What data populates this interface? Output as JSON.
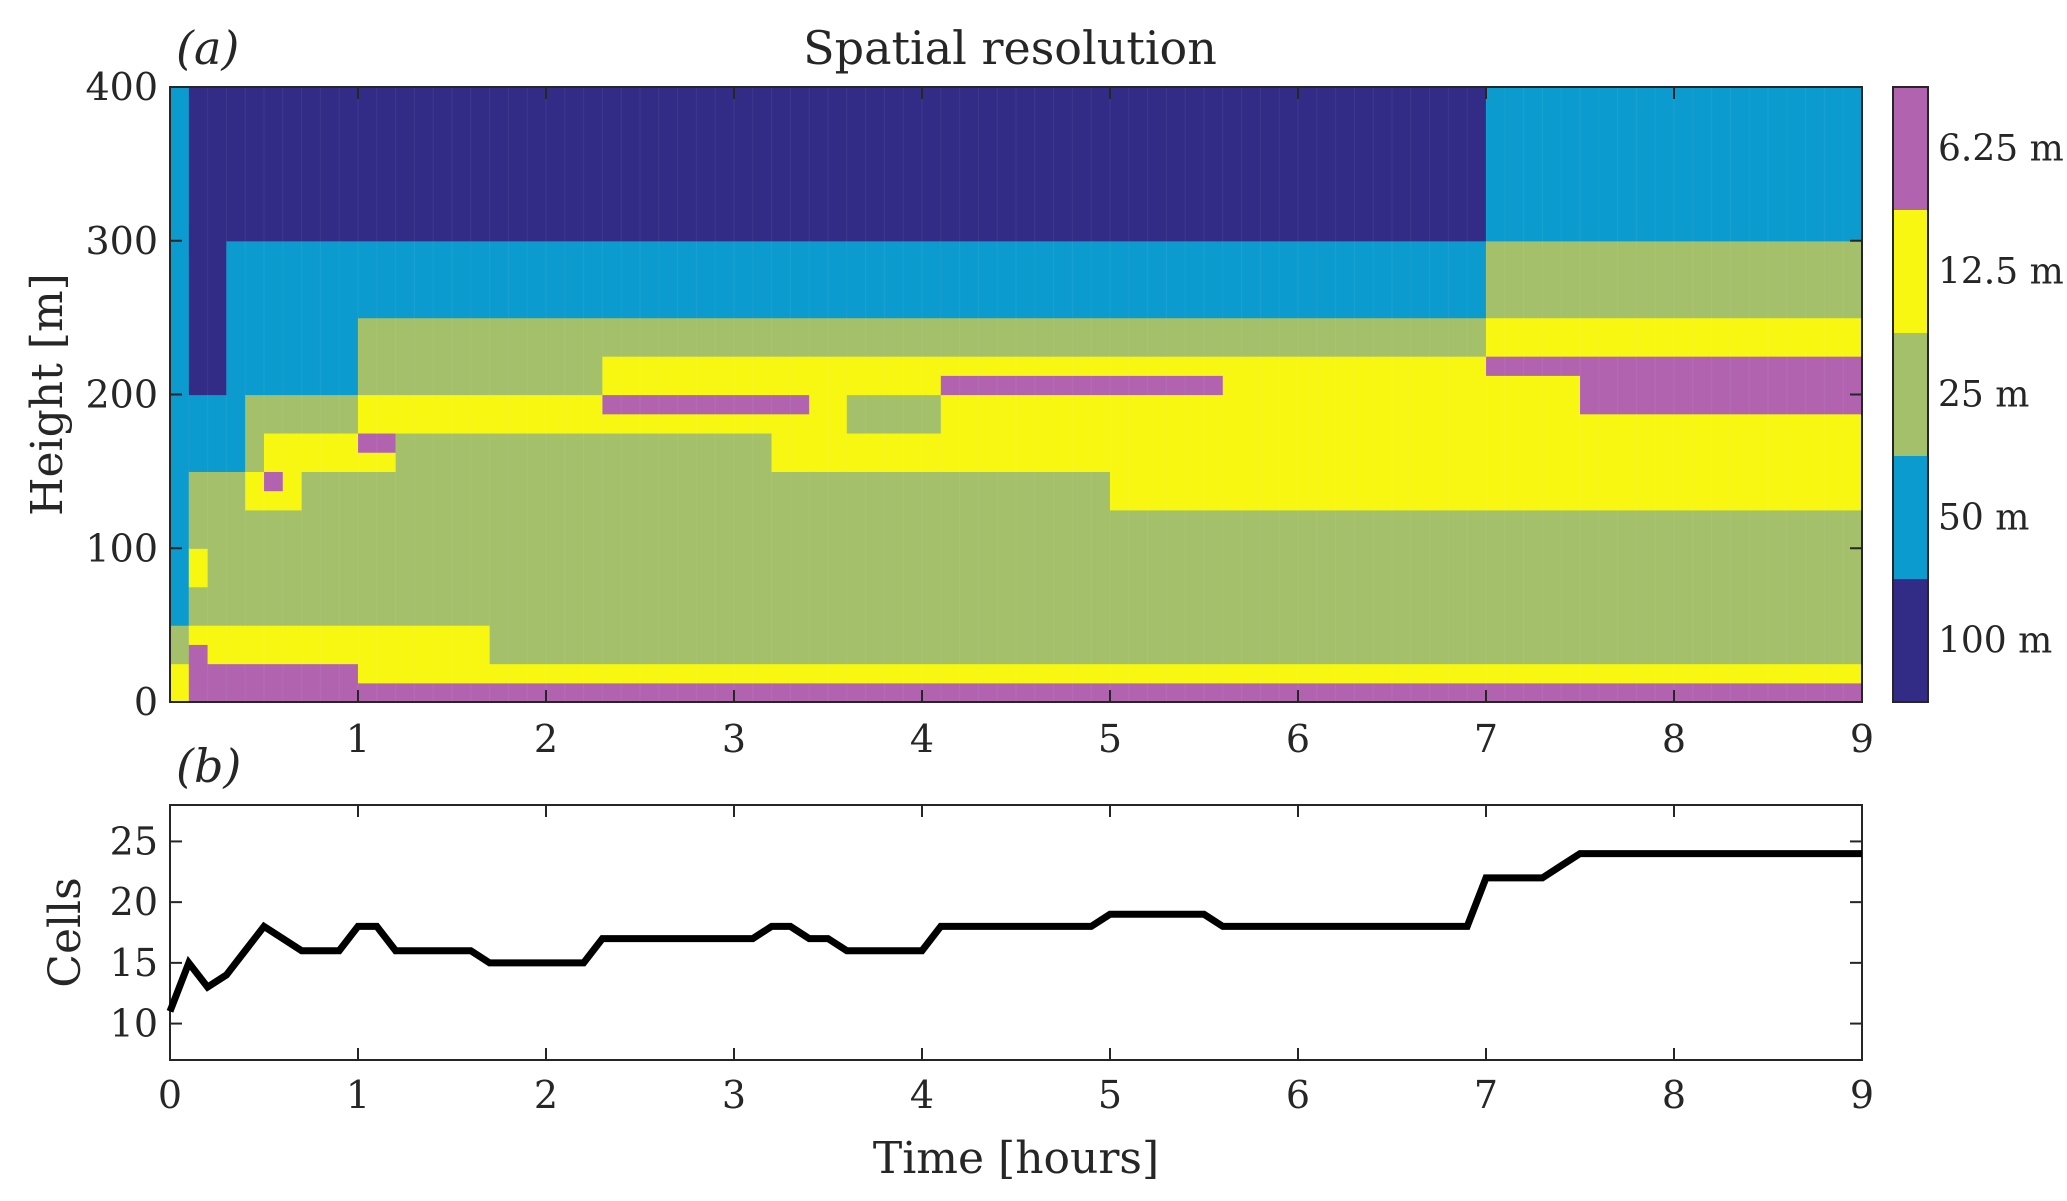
{
  "chart_data": [
    {
      "type": "heatmap",
      "panel_label": "(a)",
      "title": "Spatial resolution",
      "xlabel": "",
      "ylabel": "Height [m]",
      "xlim": [
        0,
        9
      ],
      "ylim": [
        0,
        400
      ],
      "xticks": [
        1,
        2,
        3,
        4,
        5,
        6,
        7,
        8,
        9
      ],
      "yticks": [
        0,
        100,
        200,
        300,
        400
      ],
      "colorbar": {
        "levels": [
          {
            "label": "6.25 m",
            "color": "#b163b0"
          },
          {
            "label": "12.5 m",
            "color": "#f7f712"
          },
          {
            "label": "25 m",
            "color": "#a4c06a"
          },
          {
            "label": "50 m",
            "color": "#0b9bce"
          },
          {
            "label": "100 m",
            "color": "#332c86"
          }
        ]
      },
      "column_width_hours": 0.1,
      "segments": [
        {
          "t": [
            0.0,
            0.1
          ],
          "layers": [
            [
              0,
              25,
              "12.5 m"
            ],
            [
              25,
              50,
              "25 m"
            ],
            [
              50,
              400,
              "50 m"
            ]
          ]
        },
        {
          "t": [
            0.1,
            0.2
          ],
          "layers": [
            [
              0,
              12.5,
              "6.25 m"
            ],
            [
              12.5,
              25,
              "6.25 m"
            ],
            [
              25,
              37.5,
              "6.25 m"
            ],
            [
              37.5,
              50,
              "12.5 m"
            ],
            [
              50,
              75,
              "25 m"
            ],
            [
              75,
              100,
              "12.5 m"
            ],
            [
              100,
              150,
              "25 m"
            ],
            [
              150,
              200,
              "50 m"
            ],
            [
              200,
              400,
              "100 m"
            ]
          ]
        },
        {
          "t": [
            0.2,
            0.3
          ],
          "layers": [
            [
              0,
              25,
              "6.25 m"
            ],
            [
              25,
              50,
              "12.5 m"
            ],
            [
              50,
              150,
              "25 m"
            ],
            [
              150,
              200,
              "50 m"
            ],
            [
              200,
              400,
              "100 m"
            ]
          ]
        },
        {
          "t": [
            0.3,
            0.4
          ],
          "layers": [
            [
              0,
              25,
              "6.25 m"
            ],
            [
              25,
              50,
              "12.5 m"
            ],
            [
              50,
              150,
              "25 m"
            ],
            [
              150,
              300,
              "50 m"
            ],
            [
              300,
              400,
              "100 m"
            ]
          ]
        },
        {
          "t": [
            0.4,
            0.5
          ],
          "layers": [
            [
              0,
              25,
              "6.25 m"
            ],
            [
              25,
              50,
              "12.5 m"
            ],
            [
              50,
              125,
              "25 m"
            ],
            [
              125,
              150,
              "12.5 m"
            ],
            [
              150,
              200,
              "25 m"
            ],
            [
              200,
              300,
              "50 m"
            ],
            [
              300,
              400,
              "100 m"
            ]
          ]
        },
        {
          "t": [
            0.5,
            0.6
          ],
          "layers": [
            [
              0,
              25,
              "6.25 m"
            ],
            [
              25,
              50,
              "12.5 m"
            ],
            [
              50,
              125,
              "25 m"
            ],
            [
              125,
              137.5,
              "12.5 m"
            ],
            [
              137.5,
              150,
              "6.25 m"
            ],
            [
              150,
              175,
              "12.5 m"
            ],
            [
              175,
              200,
              "25 m"
            ],
            [
              200,
              300,
              "50 m"
            ],
            [
              300,
              400,
              "100 m"
            ]
          ]
        },
        {
          "t": [
            0.6,
            0.7
          ],
          "layers": [
            [
              0,
              25,
              "6.25 m"
            ],
            [
              25,
              50,
              "12.5 m"
            ],
            [
              50,
              125,
              "25 m"
            ],
            [
              125,
              150,
              "12.5 m"
            ],
            [
              150,
              175,
              "12.5 m"
            ],
            [
              175,
              200,
              "25 m"
            ],
            [
              200,
              300,
              "50 m"
            ],
            [
              300,
              400,
              "100 m"
            ]
          ]
        },
        {
          "t": [
            0.7,
            1.0
          ],
          "layers": [
            [
              0,
              25,
              "6.25 m"
            ],
            [
              25,
              50,
              "12.5 m"
            ],
            [
              50,
              150,
              "25 m"
            ],
            [
              150,
              175,
              "12.5 m"
            ],
            [
              175,
              200,
              "25 m"
            ],
            [
              200,
              300,
              "50 m"
            ],
            [
              300,
              400,
              "100 m"
            ]
          ]
        },
        {
          "t": [
            1.0,
            1.2
          ],
          "layers": [
            [
              0,
              12.5,
              "6.25 m"
            ],
            [
              12.5,
              50,
              "12.5 m"
            ],
            [
              50,
              150,
              "25 m"
            ],
            [
              150,
              162.5,
              "12.5 m"
            ],
            [
              162.5,
              175,
              "6.25 m"
            ],
            [
              175,
              200,
              "12.5 m"
            ],
            [
              200,
              250,
              "25 m"
            ],
            [
              250,
              300,
              "50 m"
            ],
            [
              300,
              400,
              "100 m"
            ]
          ]
        },
        {
          "t": [
            1.2,
            1.7
          ],
          "layers": [
            [
              0,
              12.5,
              "6.25 m"
            ],
            [
              12.5,
              50,
              "12.5 m"
            ],
            [
              50,
              175,
              "25 m"
            ],
            [
              175,
              200,
              "12.5 m"
            ],
            [
              200,
              250,
              "25 m"
            ],
            [
              250,
              300,
              "50 m"
            ],
            [
              300,
              400,
              "100 m"
            ]
          ]
        },
        {
          "t": [
            1.7,
            2.3
          ],
          "layers": [
            [
              0,
              12.5,
              "6.25 m"
            ],
            [
              12.5,
              25,
              "12.5 m"
            ],
            [
              25,
              175,
              "25 m"
            ],
            [
              175,
              200,
              "12.5 m"
            ],
            [
              200,
              250,
              "25 m"
            ],
            [
              250,
              300,
              "50 m"
            ],
            [
              300,
              400,
              "100 m"
            ]
          ]
        },
        {
          "t": [
            2.3,
            3.2
          ],
          "layers": [
            [
              0,
              12.5,
              "6.25 m"
            ],
            [
              12.5,
              25,
              "12.5 m"
            ],
            [
              25,
              175,
              "25 m"
            ],
            [
              175,
              187.5,
              "12.5 m"
            ],
            [
              187.5,
              200,
              "6.25 m"
            ],
            [
              200,
              225,
              "12.5 m"
            ],
            [
              225,
              250,
              "25 m"
            ],
            [
              250,
              300,
              "50 m"
            ],
            [
              300,
              400,
              "100 m"
            ]
          ]
        },
        {
          "t": [
            3.2,
            3.4
          ],
          "layers": [
            [
              0,
              12.5,
              "6.25 m"
            ],
            [
              12.5,
              25,
              "12.5 m"
            ],
            [
              25,
              150,
              "25 m"
            ],
            [
              150,
              187.5,
              "12.5 m"
            ],
            [
              187.5,
              200,
              "6.25 m"
            ],
            [
              200,
              225,
              "12.5 m"
            ],
            [
              225,
              250,
              "25 m"
            ],
            [
              250,
              300,
              "50 m"
            ],
            [
              300,
              400,
              "100 m"
            ]
          ]
        },
        {
          "t": [
            3.4,
            3.6
          ],
          "layers": [
            [
              0,
              12.5,
              "6.25 m"
            ],
            [
              12.5,
              25,
              "12.5 m"
            ],
            [
              25,
              150,
              "25 m"
            ],
            [
              150,
              225,
              "12.5 m"
            ],
            [
              225,
              250,
              "25 m"
            ],
            [
              250,
              300,
              "50 m"
            ],
            [
              300,
              400,
              "100 m"
            ]
          ]
        },
        {
          "t": [
            3.6,
            4.1
          ],
          "layers": [
            [
              0,
              12.5,
              "6.25 m"
            ],
            [
              12.5,
              25,
              "12.5 m"
            ],
            [
              25,
              150,
              "25 m"
            ],
            [
              150,
              175,
              "12.5 m"
            ],
            [
              175,
              200,
              "25 m"
            ],
            [
              200,
              225,
              "12.5 m"
            ],
            [
              225,
              250,
              "25 m"
            ],
            [
              250,
              300,
              "50 m"
            ],
            [
              300,
              400,
              "100 m"
            ]
          ]
        },
        {
          "t": [
            4.1,
            5.0
          ],
          "layers": [
            [
              0,
              12.5,
              "6.25 m"
            ],
            [
              12.5,
              25,
              "12.5 m"
            ],
            [
              25,
              150,
              "25 m"
            ],
            [
              150,
              200,
              "12.5 m"
            ],
            [
              200,
              212.5,
              "6.25 m"
            ],
            [
              212.5,
              225,
              "12.5 m"
            ],
            [
              225,
              250,
              "25 m"
            ],
            [
              250,
              300,
              "50 m"
            ],
            [
              300,
              400,
              "100 m"
            ]
          ]
        },
        {
          "t": [
            5.0,
            5.6
          ],
          "layers": [
            [
              0,
              12.5,
              "6.25 m"
            ],
            [
              12.5,
              25,
              "12.5 m"
            ],
            [
              25,
              125,
              "25 m"
            ],
            [
              125,
              200,
              "12.5 m"
            ],
            [
              200,
              212.5,
              "6.25 m"
            ],
            [
              212.5,
              225,
              "12.5 m"
            ],
            [
              225,
              250,
              "25 m"
            ],
            [
              250,
              300,
              "50 m"
            ],
            [
              300,
              400,
              "100 m"
            ]
          ]
        },
        {
          "t": [
            5.6,
            7.0
          ],
          "layers": [
            [
              0,
              12.5,
              "6.25 m"
            ],
            [
              12.5,
              25,
              "12.5 m"
            ],
            [
              25,
              125,
              "25 m"
            ],
            [
              125,
              225,
              "12.5 m"
            ],
            [
              225,
              250,
              "25 m"
            ],
            [
              250,
              300,
              "50 m"
            ],
            [
              300,
              400,
              "100 m"
            ]
          ]
        },
        {
          "t": [
            7.0,
            7.5
          ],
          "layers": [
            [
              0,
              12.5,
              "6.25 m"
            ],
            [
              12.5,
              25,
              "12.5 m"
            ],
            [
              25,
              125,
              "25 m"
            ],
            [
              125,
              212.5,
              "12.5 m"
            ],
            [
              212.5,
              225,
              "6.25 m"
            ],
            [
              225,
              250,
              "12.5 m"
            ],
            [
              250,
              300,
              "25 m"
            ],
            [
              300,
              400,
              "50 m"
            ]
          ]
        },
        {
          "t": [
            7.5,
            9.0
          ],
          "layers": [
            [
              0,
              12.5,
              "6.25 m"
            ],
            [
              12.5,
              25,
              "12.5 m"
            ],
            [
              25,
              125,
              "25 m"
            ],
            [
              125,
              187.5,
              "12.5 m"
            ],
            [
              187.5,
              225,
              "6.25 m"
            ],
            [
              225,
              250,
              "12.5 m"
            ],
            [
              250,
              300,
              "25 m"
            ],
            [
              300,
              400,
              "50 m"
            ]
          ]
        }
      ]
    },
    {
      "type": "line",
      "panel_label": "(b)",
      "xlabel": "Time [hours]",
      "ylabel": "Cells",
      "xlim": [
        0,
        9
      ],
      "ylim": [
        7,
        28
      ],
      "xticks": [
        0,
        1,
        2,
        3,
        4,
        5,
        6,
        7,
        8,
        9
      ],
      "yticks": [
        10,
        15,
        20,
        25
      ],
      "grid": false,
      "line_color": "#000000",
      "x": [
        0,
        0.1,
        0.2,
        0.3,
        0.4,
        0.5,
        0.6,
        0.7,
        0.8,
        0.9,
        1.0,
        1.1,
        1.2,
        1.3,
        1.4,
        1.5,
        1.6,
        1.7,
        1.8,
        1.9,
        2.0,
        2.1,
        2.2,
        2.3,
        2.4,
        2.5,
        2.6,
        2.7,
        2.8,
        2.9,
        3.0,
        3.1,
        3.2,
        3.3,
        3.4,
        3.5,
        3.6,
        3.7,
        3.8,
        3.9,
        4.0,
        4.1,
        4.2,
        4.3,
        4.4,
        4.5,
        4.6,
        4.7,
        4.8,
        4.9,
        5.0,
        5.1,
        5.2,
        5.3,
        5.4,
        5.5,
        5.6,
        5.7,
        5.8,
        5.9,
        6.0,
        6.1,
        6.2,
        6.3,
        6.4,
        6.5,
        6.6,
        6.7,
        6.8,
        6.9,
        7.0,
        7.1,
        7.2,
        7.3,
        7.4,
        7.5,
        7.6,
        7.7,
        7.8,
        7.9,
        8.0,
        8.1,
        8.2,
        8.3,
        8.4,
        8.5,
        8.6,
        8.7,
        8.8,
        8.9,
        9.0
      ],
      "y": [
        11,
        15,
        13,
        14,
        16,
        18,
        17,
        16,
        16,
        16,
        18,
        18,
        16,
        16,
        16,
        16,
        16,
        15,
        15,
        15,
        15,
        15,
        15,
        17,
        17,
        17,
        17,
        17,
        17,
        17,
        17,
        17,
        18,
        18,
        17,
        17,
        16,
        16,
        16,
        16,
        16,
        18,
        18,
        18,
        18,
        18,
        18,
        18,
        18,
        18,
        19,
        19,
        19,
        19,
        19,
        19,
        18,
        18,
        18,
        18,
        18,
        18,
        18,
        18,
        18,
        18,
        18,
        18,
        18,
        18,
        22,
        22,
        22,
        22,
        23,
        24,
        24,
        24,
        24,
        24,
        24,
        24,
        24,
        24,
        24,
        24,
        24,
        24,
        24,
        24,
        24
      ]
    }
  ]
}
